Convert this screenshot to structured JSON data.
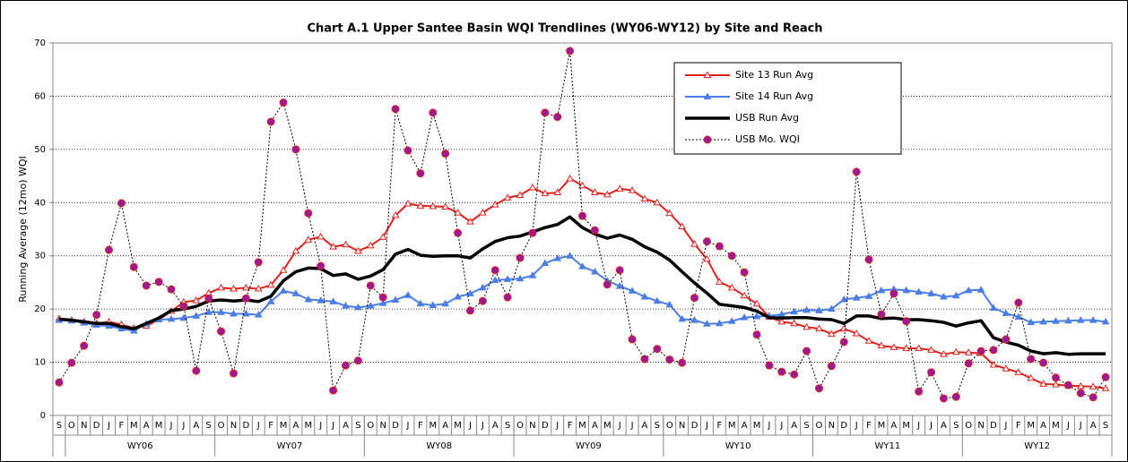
{
  "chart_data": {
    "type": "line",
    "title": "Chart A.1 Upper Santee Basin WQI Trendlines (WY06-WY12) by Site and Reach",
    "y_label": "Running Average (12mo) WQI",
    "ylim": [
      0,
      70
    ],
    "yticks": [
      0,
      10,
      20,
      30,
      40,
      50,
      60,
      70
    ],
    "grid": true,
    "grid_style": "dotted",
    "legend": "top-right",
    "categories": [
      "S",
      "O",
      "N",
      "D",
      "J",
      "F",
      "M",
      "A",
      "M",
      "J",
      "J",
      "A",
      "S",
      "O",
      "N",
      "D",
      "J",
      "F",
      "M",
      "A",
      "M",
      "J",
      "J",
      "A",
      "S",
      "O",
      "N",
      "D",
      "J",
      "F",
      "M",
      "A",
      "M",
      "J",
      "J",
      "A",
      "S",
      "O",
      "N",
      "D",
      "J",
      "F",
      "M",
      "A",
      "M",
      "J",
      "J",
      "A",
      "S",
      "O",
      "N",
      "D",
      "J",
      "F",
      "M",
      "A",
      "M",
      "J",
      "J",
      "A",
      "S",
      "O",
      "N",
      "D",
      "J",
      "F",
      "M",
      "A",
      "M",
      "J",
      "J",
      "A",
      "S",
      "O",
      "N",
      "D",
      "J",
      "F",
      "M",
      "A",
      "M",
      "J",
      "J",
      "A",
      "S"
    ],
    "x_groups": [
      "WY06",
      "WY07",
      "WY08",
      "WY09",
      "WY10",
      "WY11",
      "WY12"
    ],
    "series": [
      {
        "name": "Site 13 Run Avg",
        "color": "#e0201b",
        "line_width": 2,
        "dashed": false,
        "marker": "triangle-open",
        "values": [
          18.2,
          17.9,
          17.6,
          17.3,
          17.6,
          17.1,
          16.4,
          16.8,
          18.0,
          19.6,
          21.3,
          21.6,
          23.0,
          24.0,
          23.8,
          24.0,
          23.8,
          24.5,
          27.3,
          30.9,
          33.0,
          33.6,
          31.7,
          32.1,
          30.9,
          31.9,
          33.5,
          37.6,
          39.8,
          39.4,
          39.3,
          39.2,
          38.1,
          36.4,
          38.1,
          39.6,
          40.9,
          41.4,
          42.8,
          41.7,
          41.9,
          44.5,
          43.2,
          41.9,
          41.5,
          42.6,
          42.3,
          40.7,
          40.0,
          38.0,
          35.5,
          32.2,
          29.4,
          25.1,
          24.0,
          22.5,
          21.0,
          18.5,
          17.6,
          17.3,
          16.6,
          16.3,
          15.3,
          16.3,
          15.4,
          14.0,
          13.1,
          12.8,
          12.6,
          12.6,
          12.3,
          11.5,
          11.9,
          11.8,
          11.7,
          9.5,
          8.8,
          8.1,
          7.0,
          5.9,
          5.8,
          5.6,
          5.5,
          5.4,
          5.1
        ]
      },
      {
        "name": "Site 14 Run Avg",
        "color": "#4a7de6",
        "line_width": 2,
        "dashed": false,
        "marker": "triangle-filled",
        "values": [
          17.9,
          17.8,
          17.4,
          17.0,
          16.8,
          16.3,
          15.9,
          17.2,
          18.0,
          18.1,
          18.3,
          18.7,
          19.4,
          19.4,
          19.1,
          19.1,
          18.9,
          21.4,
          23.4,
          22.9,
          21.8,
          21.6,
          21.4,
          20.6,
          20.3,
          20.6,
          21.1,
          21.7,
          22.6,
          21.0,
          20.7,
          21.0,
          22.3,
          22.9,
          24.0,
          25.4,
          25.6,
          25.7,
          26.3,
          28.6,
          29.5,
          30.0,
          28.0,
          27.0,
          25.3,
          24.3,
          23.4,
          22.3,
          21.5,
          20.8,
          18.1,
          17.9,
          17.2,
          17.3,
          17.7,
          18.4,
          18.6,
          18.7,
          19.0,
          19.5,
          19.8,
          19.7,
          20.0,
          21.8,
          22.1,
          22.4,
          23.5,
          23.7,
          23.5,
          23.2,
          22.9,
          22.3,
          22.5,
          23.5,
          23.6,
          20.2,
          19.2,
          18.5,
          17.5,
          17.6,
          17.7,
          17.8,
          17.9,
          17.9,
          17.6
        ]
      },
      {
        "name": "USB Run Avg",
        "color": "#000000",
        "line_width": 3.5,
        "dashed": false,
        "marker": "none",
        "values": [
          18.1,
          17.9,
          17.6,
          17.3,
          17.3,
          16.7,
          16.3,
          17.3,
          18.3,
          19.7,
          20.0,
          20.5,
          21.5,
          21.7,
          21.5,
          21.7,
          21.4,
          22.4,
          25.3,
          27.0,
          27.7,
          27.6,
          26.3,
          26.6,
          25.6,
          26.2,
          27.4,
          30.3,
          31.2,
          30.1,
          29.9,
          30.0,
          30.0,
          29.6,
          31.3,
          32.7,
          33.4,
          33.7,
          34.5,
          35.3,
          35.9,
          37.3,
          35.3,
          34.1,
          33.3,
          33.9,
          33.1,
          31.7,
          30.7,
          29.2,
          27.0,
          24.9,
          23.0,
          20.9,
          20.6,
          20.3,
          19.6,
          18.4,
          18.3,
          18.4,
          18.4,
          18.1,
          18.0,
          17.3,
          18.7,
          18.7,
          18.2,
          18.3,
          18.0,
          18.0,
          17.8,
          17.5,
          16.8,
          17.4,
          17.8,
          14.6,
          13.8,
          13.2,
          12.1,
          11.6,
          11.8,
          11.5,
          11.6,
          11.6,
          11.6
        ]
      },
      {
        "name": "USB Mo. WQI",
        "color": "#000000",
        "marker_color": "#9a1a9a",
        "marker_edge": "#e0201b",
        "line_width": 1,
        "dashed": true,
        "marker": "circle",
        "values": [
          6.2,
          9.9,
          13.1,
          18.9,
          31.1,
          39.9,
          27.9,
          24.4,
          25.1,
          23.7,
          20.5,
          8.4,
          22.0,
          15.8,
          7.9,
          22.0,
          28.8,
          55.2,
          58.8,
          50.0,
          38.0,
          28.1,
          4.7,
          9.4,
          10.3,
          24.4,
          22.2,
          57.6,
          49.8,
          45.5,
          56.9,
          49.2,
          34.3,
          19.7,
          21.5,
          27.3,
          22.2,
          29.6,
          34.3,
          56.9,
          56.1,
          68.5,
          37.5,
          34.8,
          24.6,
          27.3,
          14.3,
          10.6,
          12.5,
          10.5,
          9.9,
          22.1,
          32.7,
          31.8,
          30.0,
          26.9,
          15.2,
          9.4,
          8.2,
          7.7,
          12.1,
          5.1,
          9.3,
          13.8,
          45.8,
          29.3,
          19.0,
          22.9,
          17.7,
          4.5,
          8.1,
          3.2,
          3.5,
          9.8,
          12.1,
          12.3,
          14.3,
          21.2,
          10.6,
          9.9,
          7.1,
          5.7,
          4.2,
          3.4,
          7.2
        ]
      }
    ]
  }
}
